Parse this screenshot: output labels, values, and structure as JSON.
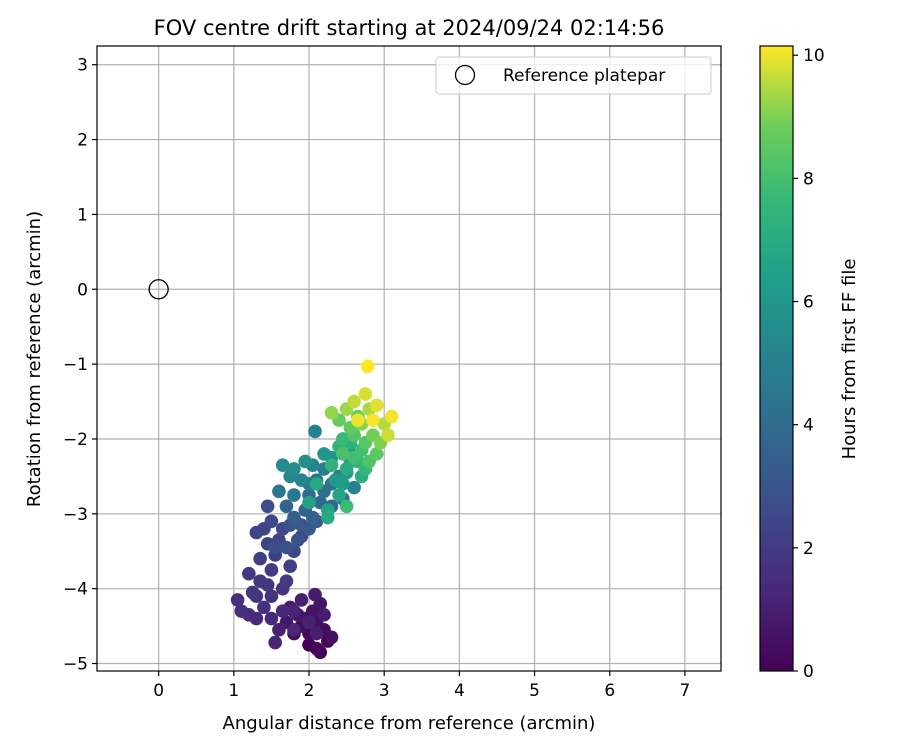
{
  "chart_data": {
    "type": "scatter",
    "title": "FOV centre drift starting at 2024/09/24 02:14:56",
    "xlabel": "Angular distance from reference (arcmin)",
    "ylabel": "Rotation from reference (arcmin)",
    "xlim": [
      -0.82,
      7.48
    ],
    "ylim": [
      -5.1,
      3.25
    ],
    "xticks": [
      0,
      1,
      2,
      3,
      4,
      5,
      6,
      7
    ],
    "yticks": [
      -5,
      -4,
      -3,
      -2,
      -1,
      0,
      1,
      2,
      3
    ],
    "grid": true,
    "legend": {
      "placement": "top-right",
      "entries": [
        "Reference platepar"
      ]
    },
    "reference_point": {
      "name": "Reference platepar",
      "x": 0,
      "y": 0
    },
    "colorbar": {
      "label": "Hours from first FF file",
      "colormap": "viridis",
      "range": [
        0,
        10.15
      ],
      "ticks": [
        0,
        2,
        4,
        6,
        8,
        10
      ]
    },
    "series": [
      {
        "points": [
          [
            2.0,
            -4.75,
            0.0
          ],
          [
            2.1,
            -4.8,
            0.1
          ],
          [
            2.15,
            -4.85,
            0.15
          ],
          [
            2.25,
            -4.7,
            0.2
          ],
          [
            2.0,
            -4.6,
            0.25
          ],
          [
            2.2,
            -4.55,
            0.3
          ],
          [
            1.8,
            -4.6,
            0.35
          ],
          [
            1.9,
            -4.5,
            0.4
          ],
          [
            2.1,
            -4.45,
            0.45
          ],
          [
            2.3,
            -4.65,
            0.5
          ],
          [
            1.95,
            -4.4,
            0.55
          ],
          [
            2.05,
            -4.3,
            0.6
          ],
          [
            2.15,
            -4.2,
            0.65
          ],
          [
            1.85,
            -4.35,
            0.7
          ],
          [
            1.7,
            -4.45,
            0.75
          ],
          [
            1.75,
            -4.25,
            0.8
          ],
          [
            2.08,
            -4.08,
            0.85
          ],
          [
            2.1,
            -4.6,
            0.9
          ],
          [
            2.2,
            -4.35,
            0.95
          ],
          [
            1.9,
            -4.15,
            1.0
          ],
          [
            1.6,
            -4.55,
            1.05
          ],
          [
            2.0,
            -4.45,
            1.1
          ],
          [
            1.8,
            -4.3,
            1.15
          ],
          [
            1.55,
            -4.72,
            1.2
          ],
          [
            1.8,
            -4.55,
            1.25
          ],
          [
            1.65,
            -4.3,
            1.3
          ],
          [
            1.5,
            -4.4,
            1.35
          ],
          [
            1.3,
            -4.4,
            1.4
          ],
          [
            1.2,
            -4.35,
            1.45
          ],
          [
            1.1,
            -4.3,
            1.5
          ],
          [
            1.05,
            -4.15,
            1.55
          ],
          [
            1.4,
            -4.25,
            1.6
          ],
          [
            1.3,
            -4.1,
            1.65
          ],
          [
            1.5,
            -4.1,
            1.7
          ],
          [
            1.65,
            -4.0,
            1.75
          ],
          [
            1.45,
            -3.95,
            1.8
          ],
          [
            1.25,
            -4.05,
            1.85
          ],
          [
            1.35,
            -3.9,
            1.9
          ],
          [
            1.2,
            -3.8,
            1.95
          ],
          [
            1.7,
            -3.9,
            2.0
          ],
          [
            1.5,
            -3.75,
            2.05
          ],
          [
            1.35,
            -3.6,
            2.1
          ],
          [
            1.55,
            -3.55,
            2.15
          ],
          [
            1.75,
            -3.7,
            2.2
          ],
          [
            1.45,
            -3.4,
            2.25
          ],
          [
            1.6,
            -3.35,
            2.3
          ],
          [
            1.4,
            -3.2,
            2.35
          ],
          [
            1.3,
            -3.25,
            2.4
          ],
          [
            1.5,
            -3.1,
            2.45
          ],
          [
            1.65,
            -3.2,
            2.5
          ],
          [
            1.8,
            -3.5,
            2.55
          ],
          [
            1.9,
            -3.3,
            2.6
          ],
          [
            1.45,
            -2.9,
            2.7
          ],
          [
            1.55,
            -3.45,
            2.75
          ],
          [
            1.7,
            -3.45,
            2.8
          ],
          [
            1.85,
            -3.35,
            2.9
          ],
          [
            1.75,
            -3.15,
            3.0
          ],
          [
            1.9,
            -3.15,
            3.1
          ],
          [
            2.0,
            -3.2,
            3.2
          ],
          [
            2.1,
            -3.1,
            3.3
          ],
          [
            1.8,
            -3.05,
            3.4
          ],
          [
            1.95,
            -2.95,
            3.5
          ],
          [
            2.05,
            -3.05,
            3.6
          ],
          [
            1.7,
            -2.9,
            3.7
          ],
          [
            2.15,
            -2.85,
            3.8
          ],
          [
            2.3,
            -2.9,
            3.9
          ],
          [
            2.0,
            -2.75,
            4.0
          ],
          [
            2.2,
            -2.7,
            4.1
          ],
          [
            2.45,
            -2.8,
            4.2
          ],
          [
            2.3,
            -2.6,
            4.3
          ],
          [
            2.1,
            -2.55,
            4.4
          ],
          [
            1.6,
            -2.7,
            4.5
          ],
          [
            1.8,
            -2.75,
            4.6
          ],
          [
            2.0,
            -2.6,
            4.7
          ],
          [
            2.4,
            -2.5,
            4.8
          ],
          [
            2.2,
            -2.4,
            4.9
          ],
          [
            2.6,
            -2.65,
            5.0
          ],
          [
            2.08,
            -1.9,
            5.1
          ],
          [
            1.9,
            -2.55,
            5.2
          ],
          [
            2.05,
            -2.35,
            5.3
          ],
          [
            1.75,
            -2.5,
            5.4
          ],
          [
            1.65,
            -2.35,
            5.5
          ],
          [
            1.8,
            -2.4,
            5.6
          ],
          [
            1.95,
            -2.3,
            5.7
          ],
          [
            2.3,
            -2.25,
            5.8
          ],
          [
            2.5,
            -2.45,
            5.9
          ],
          [
            2.2,
            -2.2,
            6.0
          ],
          [
            2.35,
            -2.55,
            6.1
          ],
          [
            2.45,
            -2.6,
            6.2
          ],
          [
            2.55,
            -2.3,
            6.3
          ],
          [
            2.6,
            -2.15,
            6.4
          ],
          [
            2.0,
            -2.85,
            6.5
          ],
          [
            2.25,
            -2.95,
            6.6
          ],
          [
            2.4,
            -2.75,
            6.7
          ],
          [
            2.1,
            -2.6,
            6.8
          ],
          [
            2.25,
            -3.05,
            6.9
          ],
          [
            2.5,
            -2.4,
            7.0
          ],
          [
            2.7,
            -2.5,
            7.1
          ],
          [
            2.55,
            -2.05,
            7.2
          ],
          [
            2.3,
            -2.35,
            7.3
          ],
          [
            2.4,
            -2.1,
            7.4
          ],
          [
            2.65,
            -2.3,
            7.5
          ],
          [
            2.75,
            -2.4,
            7.6
          ],
          [
            2.45,
            -2.0,
            7.7
          ],
          [
            2.5,
            -2.9,
            7.8
          ],
          [
            2.6,
            -2.25,
            7.9
          ],
          [
            2.7,
            -2.15,
            8.0
          ],
          [
            2.45,
            -2.2,
            8.1
          ],
          [
            2.8,
            -2.3,
            8.2
          ],
          [
            2.6,
            -1.95,
            8.3
          ],
          [
            2.75,
            -2.05,
            8.4
          ],
          [
            2.9,
            -2.2,
            8.5
          ],
          [
            2.55,
            -1.85,
            8.6
          ],
          [
            2.4,
            -1.75,
            8.7
          ],
          [
            2.65,
            -1.7,
            8.8
          ],
          [
            2.85,
            -1.95,
            8.9
          ],
          [
            2.95,
            -2.05,
            9.0
          ],
          [
            2.7,
            -1.8,
            9.1
          ],
          [
            2.3,
            -1.65,
            9.2
          ],
          [
            2.5,
            -1.6,
            9.3
          ],
          [
            2.8,
            -1.6,
            9.4
          ],
          [
            3.0,
            -1.8,
            9.5
          ],
          [
            2.6,
            -1.5,
            9.6
          ],
          [
            3.05,
            -1.95,
            9.7
          ],
          [
            2.75,
            -1.4,
            9.8
          ],
          [
            2.9,
            -1.55,
            9.9
          ],
          [
            2.65,
            -1.75,
            10.0
          ],
          [
            3.1,
            -1.7,
            10.05
          ],
          [
            2.85,
            -1.75,
            10.1
          ],
          [
            2.78,
            -1.03,
            10.15
          ]
        ]
      }
    ]
  }
}
